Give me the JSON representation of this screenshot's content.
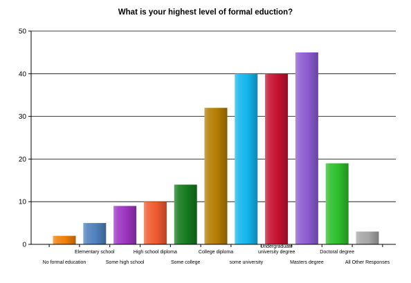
{
  "chart_data": {
    "type": "bar",
    "title": "What is your highest level of formal eduction?",
    "xlabel": "",
    "ylabel": "",
    "ylim": [
      0,
      50
    ],
    "yticks": [
      0,
      10,
      20,
      30,
      40,
      50
    ],
    "grid": true,
    "legend": "none",
    "categories": [
      "No formal education",
      "Elementary school",
      "Some high school",
      "High school diploma",
      "Some college",
      "College diploma",
      "some university",
      "Undergraduate university degree",
      "Masters degree",
      "Doctoral degree",
      "All Other Responses"
    ],
    "category_label_lines": [
      [
        "No formal education"
      ],
      [
        "Elementary school"
      ],
      [
        "Some high school"
      ],
      [
        "High school diploma"
      ],
      [
        "Some college"
      ],
      [
        "College diploma"
      ],
      [
        "some university"
      ],
      [
        "Undergraduate",
        "university degree"
      ],
      [
        "Masters degree"
      ],
      [
        "Doctoral degree"
      ],
      [
        "All Other Responses"
      ]
    ],
    "values": [
      2,
      5,
      9,
      10,
      14,
      32,
      40,
      40,
      45,
      19,
      3
    ],
    "colors": [
      "#F07F09",
      "#4F81BD",
      "#9A35C0",
      "#F05A2E",
      "#157A1E",
      "#B37D00",
      "#12B5EC",
      "#C41230",
      "#8C5BD0",
      "#2DBE2D",
      "#A6A6A6"
    ]
  }
}
